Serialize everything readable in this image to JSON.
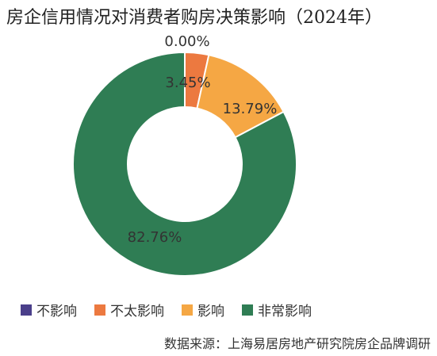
{
  "chart_data": {
    "type": "pie",
    "title": "房企信用情况对消费者购房决策影响（2024年）",
    "categories": [
      "不影响",
      "不太影响",
      "影响",
      "非常影响"
    ],
    "values": [
      0.0,
      3.45,
      13.79,
      82.76
    ],
    "value_labels": [
      "0.00%",
      "3.45%",
      "13.79%",
      "82.76%"
    ],
    "colors": [
      "#4a3f8a",
      "#ec7940",
      "#f5a744",
      "#2f7d54"
    ],
    "donut": true,
    "legend_position": "bottom-left",
    "source": "数据来源：上海易居房地产研究院房企品牌调研"
  }
}
